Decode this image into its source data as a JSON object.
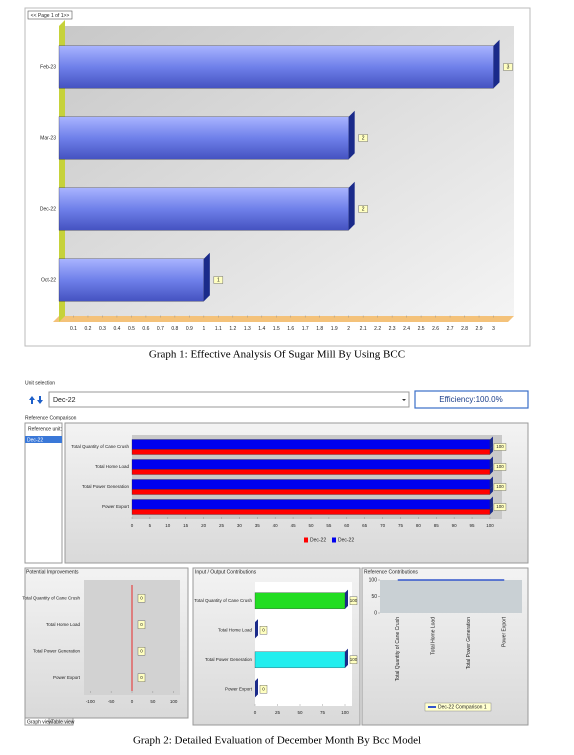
{
  "captions": [
    "Graph 1: Effective Analysis Of Sugar Mill By Using BCC",
    "Graph 2: Detailed Evaluation of December Month By Bcc Model"
  ],
  "ui": {
    "pager": "<< Page 1 of 1>>",
    "unit_selection": "Unit selection",
    "unit": "Dec-22",
    "efficiency": "Efficiency:100.0%",
    "reference_comparison": "Reference Comparison",
    "reference_unit": "Reference unit:",
    "reference_list": [
      "Dec-22"
    ],
    "panels": [
      "Potential Improvements",
      "Input / Output Contributions",
      "Reference Contributions"
    ],
    "tabs": [
      "Graph view",
      "Table view"
    ]
  },
  "chart_data": [
    {
      "type": "hbar",
      "categories": [
        "Feb-23",
        "Mar-23",
        "Dec-22",
        "Oct-22"
      ],
      "values": [
        3,
        2,
        2,
        1
      ],
      "color": "#6f80ea",
      "xlim": [
        0,
        3.1
      ],
      "xticks": [
        0.1,
        0.2,
        0.3,
        0.4,
        0.5,
        0.6,
        0.7,
        0.8,
        0.9,
        1,
        1.1,
        1.2,
        1.3,
        1.4,
        1.5,
        1.6,
        1.7,
        1.8,
        1.9,
        2,
        2.1,
        2.2,
        2.3,
        2.4,
        2.5,
        2.6,
        2.7,
        2.8,
        2.9,
        3
      ]
    },
    {
      "type": "hbar",
      "categories": [
        "Total Quantity of Cane Crush",
        "Total Home Load",
        "Total Power Generation",
        "Power Export"
      ],
      "series": [
        {
          "name": "Dec-22",
          "color": "#ff0000",
          "values": [
            100,
            100,
            100,
            100
          ]
        },
        {
          "name": "Dec-22",
          "color": "#0000ee",
          "values": [
            100,
            100,
            100,
            100
          ]
        }
      ],
      "xlim": [
        0,
        103
      ],
      "xticks": [
        0,
        5,
        10,
        15,
        20,
        25,
        30,
        35,
        40,
        45,
        50,
        55,
        60,
        65,
        70,
        75,
        80,
        85,
        90,
        95,
        100
      ]
    },
    {
      "type": "hbar",
      "categories": [
        "Total Quantity of Cane Crush",
        "Total Home Load",
        "Total Power Generation",
        "Power Export"
      ],
      "values": [
        0,
        0,
        0,
        0
      ],
      "color": "#22bbbb",
      "xlim": [
        -120,
        120
      ],
      "xticks": [
        -100,
        -50,
        0,
        50,
        100
      ]
    },
    {
      "type": "hbar",
      "categories": [
        "Total Quantity of Cane Crush",
        "Total Home Load",
        "Total Power Generation",
        "Power Export"
      ],
      "values": [
        100,
        0,
        100,
        0
      ],
      "colors": [
        "#22dd22",
        "#22dd22",
        "#22eeee",
        "#22eeee"
      ],
      "xlim": [
        0,
        105
      ],
      "xticks": [
        0,
        25,
        50,
        75,
        100
      ]
    },
    {
      "type": "area",
      "categories": [
        "Total Quantity of Cane Crush",
        "Total Home Load",
        "Total Power Generation",
        "Power Export"
      ],
      "series": [
        {
          "name": "Dec-22 Comparison 1",
          "color": "#3355cc",
          "values": [
            100,
            100,
            100,
            100
          ]
        }
      ],
      "ylim": [
        0,
        100
      ],
      "yticks": [
        0,
        50,
        100
      ]
    }
  ]
}
